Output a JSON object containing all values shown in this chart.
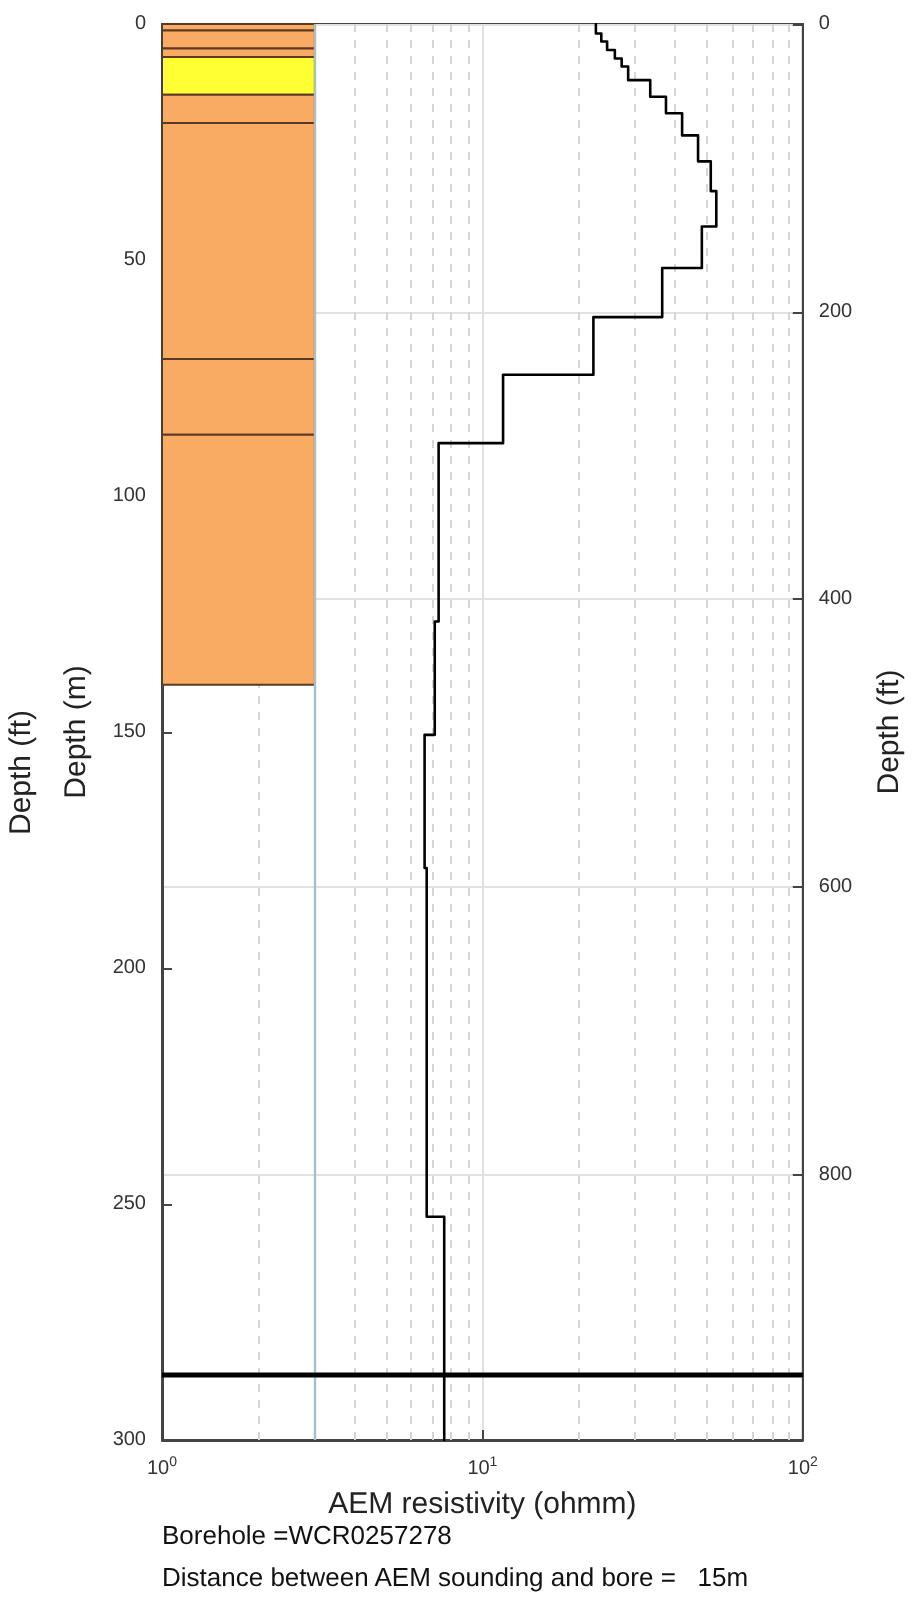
{
  "chart_data": {
    "type": "line",
    "xlabel": "AEM resistivity (ohmm)",
    "ylabel": "Depth (m)",
    "y2label": "Depth (ft)",
    "log": "x",
    "xlim": [
      1,
      100
    ],
    "xticks": [
      {
        "value": 1,
        "label": "10$^{0}$"
      },
      {
        "value": 10,
        "label": "10$^{1}$"
      },
      {
        "value": 100,
        "label": "10$^{2}$"
      }
    ],
    "ylim": [
      300,
      0
    ],
    "yticks": [
      0,
      50,
      100,
      150,
      200,
      250,
      300
    ],
    "y2lim": [
      984.3,
      0
    ],
    "y2ticks": [
      0,
      200,
      400,
      600,
      800
    ],
    "grid": true,
    "marker": "none",
    "line_style": "solid",
    "series": [
      {
        "color": "#000000",
        "x": [
          22.6,
          22.6,
          23.5,
          23.5,
          24.5,
          24.5,
          25.9,
          25.9,
          27.2,
          27.2,
          28.5,
          28.5,
          33.4,
          33.4,
          37.4,
          37.4,
          42,
          42,
          47.1,
          47.1,
          51.6,
          51.6,
          53.7,
          53.7,
          48.4,
          48.4,
          36.4,
          36.4,
          22.2,
          22.2,
          11.6,
          11.6,
          7.3,
          7.3,
          7.1,
          7.1,
          6.6,
          6.6,
          6.7,
          6.7,
          7.6,
          7.6
        ],
        "values": [
          0,
          2,
          2,
          3.7,
          3.7,
          5.5,
          5.5,
          7.3,
          7.3,
          9,
          9,
          11.9,
          11.9,
          15.4,
          15.4,
          18.9,
          18.9,
          23.6,
          23.6,
          29.1,
          29.1,
          35.4,
          35.4,
          42.9,
          42.9,
          51.7,
          51.7,
          62.1,
          62.1,
          74.3,
          74.3,
          88.8,
          88.8,
          126.6,
          126.6,
          150.6,
          150.6,
          178.8,
          178.8,
          252.7,
          252.7,
          300
        ]
      }
    ],
    "bands": [
      {
        "axis": "y",
        "from": 0,
        "to": 1.4,
        "color": "#f9ab64"
      },
      {
        "axis": "y",
        "from": 1.4,
        "to": 5.2,
        "color": "#f9ab64"
      },
      {
        "axis": "y",
        "from": 5.2,
        "to": 7,
        "color": "#f9ab64"
      },
      {
        "axis": "y",
        "from": 7,
        "to": 15,
        "color": "#ffff33"
      },
      {
        "axis": "y",
        "from": 15,
        "to": 21,
        "color": "#f9ab64"
      },
      {
        "axis": "y",
        "from": 21,
        "to": 71,
        "color": "#f9ab64"
      },
      {
        "axis": "y",
        "from": 71,
        "to": 87,
        "color": "#f9ab64"
      },
      {
        "axis": "y",
        "from": 87,
        "to": 140,
        "color": "#f9ab64"
      }
    ],
    "ref_lines": [
      {
        "axis": "x",
        "value": 3,
        "color": "#a7bfcc"
      },
      {
        "axis": "y",
        "value": 286,
        "color": "#000000"
      }
    ],
    "annotations": [
      "Depth (ft)",
      "Borehole =WCR0257278",
      "Distance between AEM sounding and bore =   15m"
    ]
  }
}
